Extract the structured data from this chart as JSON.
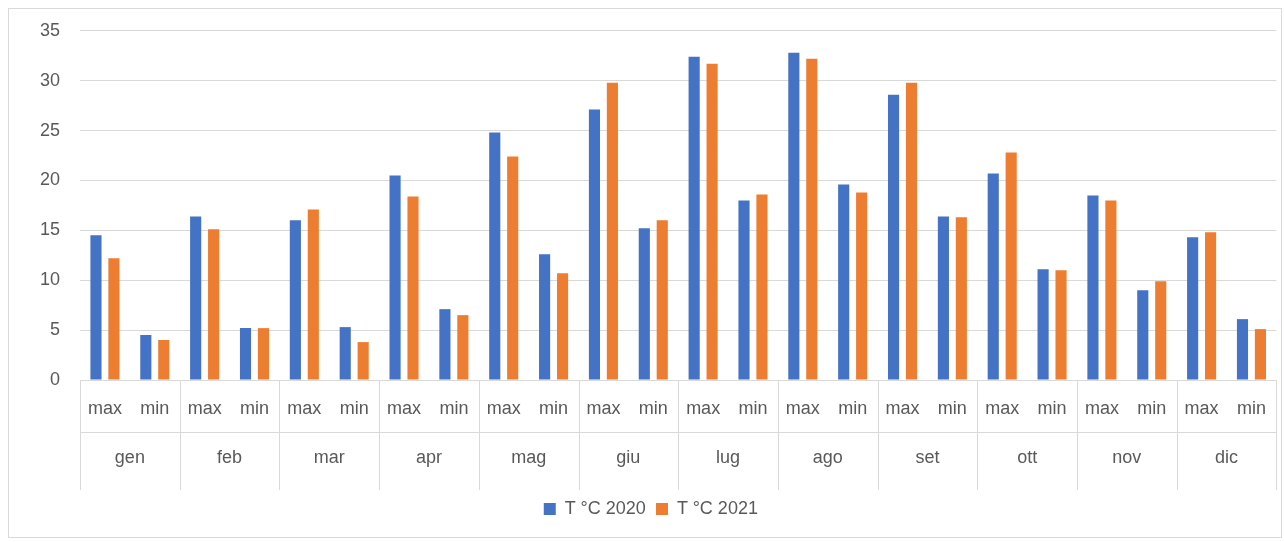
{
  "chart_data": {
    "type": "bar",
    "categories": [
      "max",
      "min",
      "max",
      "min",
      "max",
      "min",
      "max",
      "min",
      "max",
      "min",
      "max",
      "min",
      "max",
      "min",
      "max",
      "min",
      "max",
      "min",
      "max",
      "min",
      "max",
      "min",
      "max",
      "min"
    ],
    "annotations": [
      "gen",
      "feb",
      "mar",
      "apr",
      "mag",
      "giu",
      "lug",
      "ago",
      "set",
      "ott",
      "nov",
      "dic"
    ],
    "series": [
      {
        "name": "T °C 2020",
        "color": "#4472c4",
        "values": [
          14.5,
          4.5,
          16.4,
          5.2,
          16.0,
          5.3,
          20.5,
          7.1,
          24.8,
          12.6,
          27.1,
          15.2,
          32.4,
          18.0,
          32.8,
          19.6,
          28.6,
          16.4,
          20.7,
          11.1,
          18.5,
          9.0,
          14.3,
          6.1
        ]
      },
      {
        "name": "T °C 2021",
        "color": "#ed7d31",
        "values": [
          12.2,
          4.0,
          15.1,
          5.2,
          17.1,
          3.8,
          18.4,
          6.5,
          22.4,
          10.7,
          29.8,
          16.0,
          31.7,
          18.6,
          32.2,
          18.8,
          29.8,
          16.3,
          22.8,
          11.0,
          18.0,
          9.9,
          14.8,
          5.1
        ]
      }
    ],
    "ylim": [
      0,
      35
    ],
    "yticks": [
      0,
      5,
      10,
      15,
      20,
      25,
      30,
      35
    ],
    "grid": "y",
    "legend": "bottom"
  }
}
